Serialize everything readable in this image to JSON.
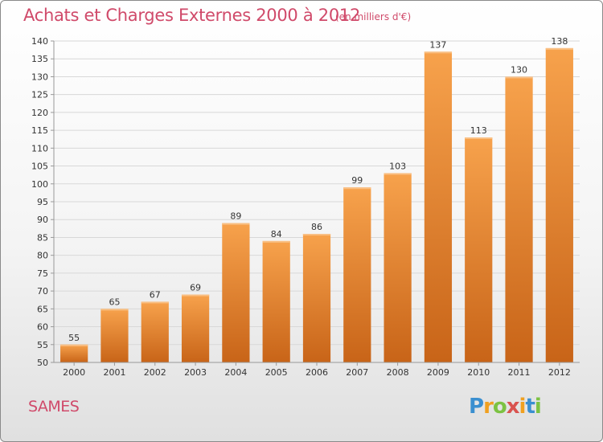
{
  "title": "Achats et Charges Externes 2000 à 2012",
  "subtitle": "(en milliers d'€)",
  "commune": "SAMES",
  "logo": {
    "letters": [
      "P",
      "r",
      "o",
      "x",
      "i",
      "t",
      "i"
    ],
    "colors": [
      "#3a8fd0",
      "#f0a020",
      "#7cc242",
      "#d9534f",
      "#f0a020",
      "#3a8fd0",
      "#7cc242"
    ]
  },
  "colors": {
    "title": "#d04a6a",
    "bar_light": "#f7a24c",
    "bar_dark": "#c86418",
    "grid": "#d8d8d8",
    "axis_text": "#333333"
  },
  "chart_data": {
    "type": "bar",
    "categories": [
      "2000",
      "2001",
      "2002",
      "2003",
      "2004",
      "2005",
      "2006",
      "2007",
      "2008",
      "2009",
      "2010",
      "2011",
      "2012"
    ],
    "values": [
      55,
      65,
      67,
      69,
      89,
      84,
      86,
      99,
      103,
      137,
      113,
      130,
      138
    ],
    "data_labels": [
      "55",
      "65",
      "67",
      "69",
      "89",
      "84",
      "86",
      "99",
      "103",
      "137",
      "113",
      "130",
      "138"
    ],
    "title": "Achats et Charges Externes 2000 à 2012",
    "xlabel": "",
    "ylabel": "",
    "ylim": [
      50,
      140
    ],
    "yticks": [
      50,
      55,
      60,
      65,
      70,
      75,
      80,
      85,
      90,
      95,
      100,
      105,
      110,
      115,
      120,
      125,
      130,
      135,
      140
    ],
    "grid": true
  }
}
